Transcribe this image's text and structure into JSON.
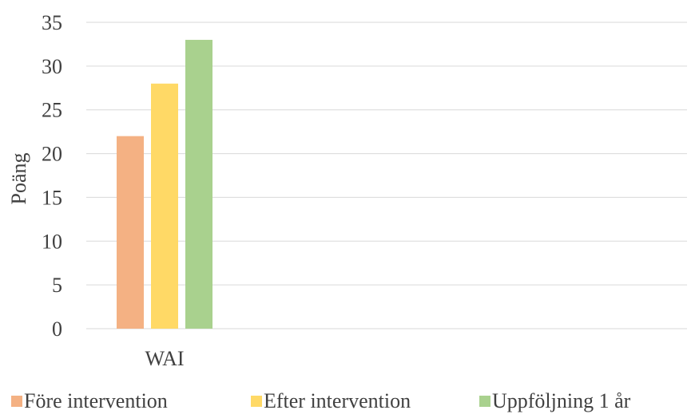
{
  "chart_data": {
    "type": "bar",
    "title": "",
    "xlabel": "",
    "ylabel": "Poäng",
    "categories": [
      "WAI"
    ],
    "series": [
      {
        "name": "Före intervention",
        "values": [
          22
        ],
        "color": "#F4B183"
      },
      {
        "name": "Efter intervention",
        "values": [
          28
        ],
        "color": "#FFD966"
      },
      {
        "name": "Uppföljning 1 år",
        "values": [
          33
        ],
        "color": "#A9D18E"
      }
    ],
    "ylim": [
      0,
      35
    ],
    "yticks": [
      0,
      5,
      10,
      15,
      20,
      25,
      30,
      35
    ],
    "grid": true,
    "legend": "bottom"
  }
}
